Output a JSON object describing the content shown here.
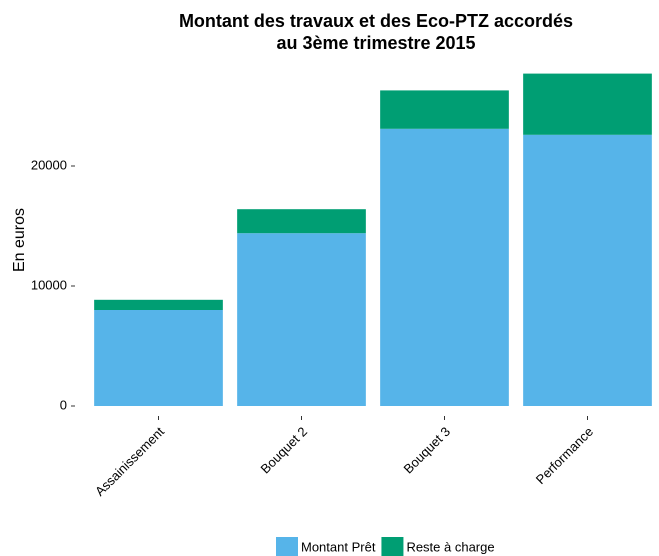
{
  "chart_data": {
    "type": "stacked_bar",
    "title": [
      "Montant des travaux et des Eco-PTZ accordés",
      "au 3ème trimestre 2015"
    ],
    "y_label": "En euros",
    "categories": [
      "Assainissement",
      "Bouquet 2",
      "Bouquet 3",
      "Performance"
    ],
    "series": [
      {
        "name": "Montant Prêt",
        "color": "#56B4E9",
        "values": [
          8000,
          14400,
          23100,
          22600
        ]
      },
      {
        "name": "Reste à charge",
        "color": "#009E73",
        "values": [
          850,
          2000,
          3200,
          5100
        ]
      }
    ],
    "ylim": [
      0,
      28000
    ],
    "yticks": [
      0,
      10000,
      20000
    ],
    "legend": "bottom"
  }
}
